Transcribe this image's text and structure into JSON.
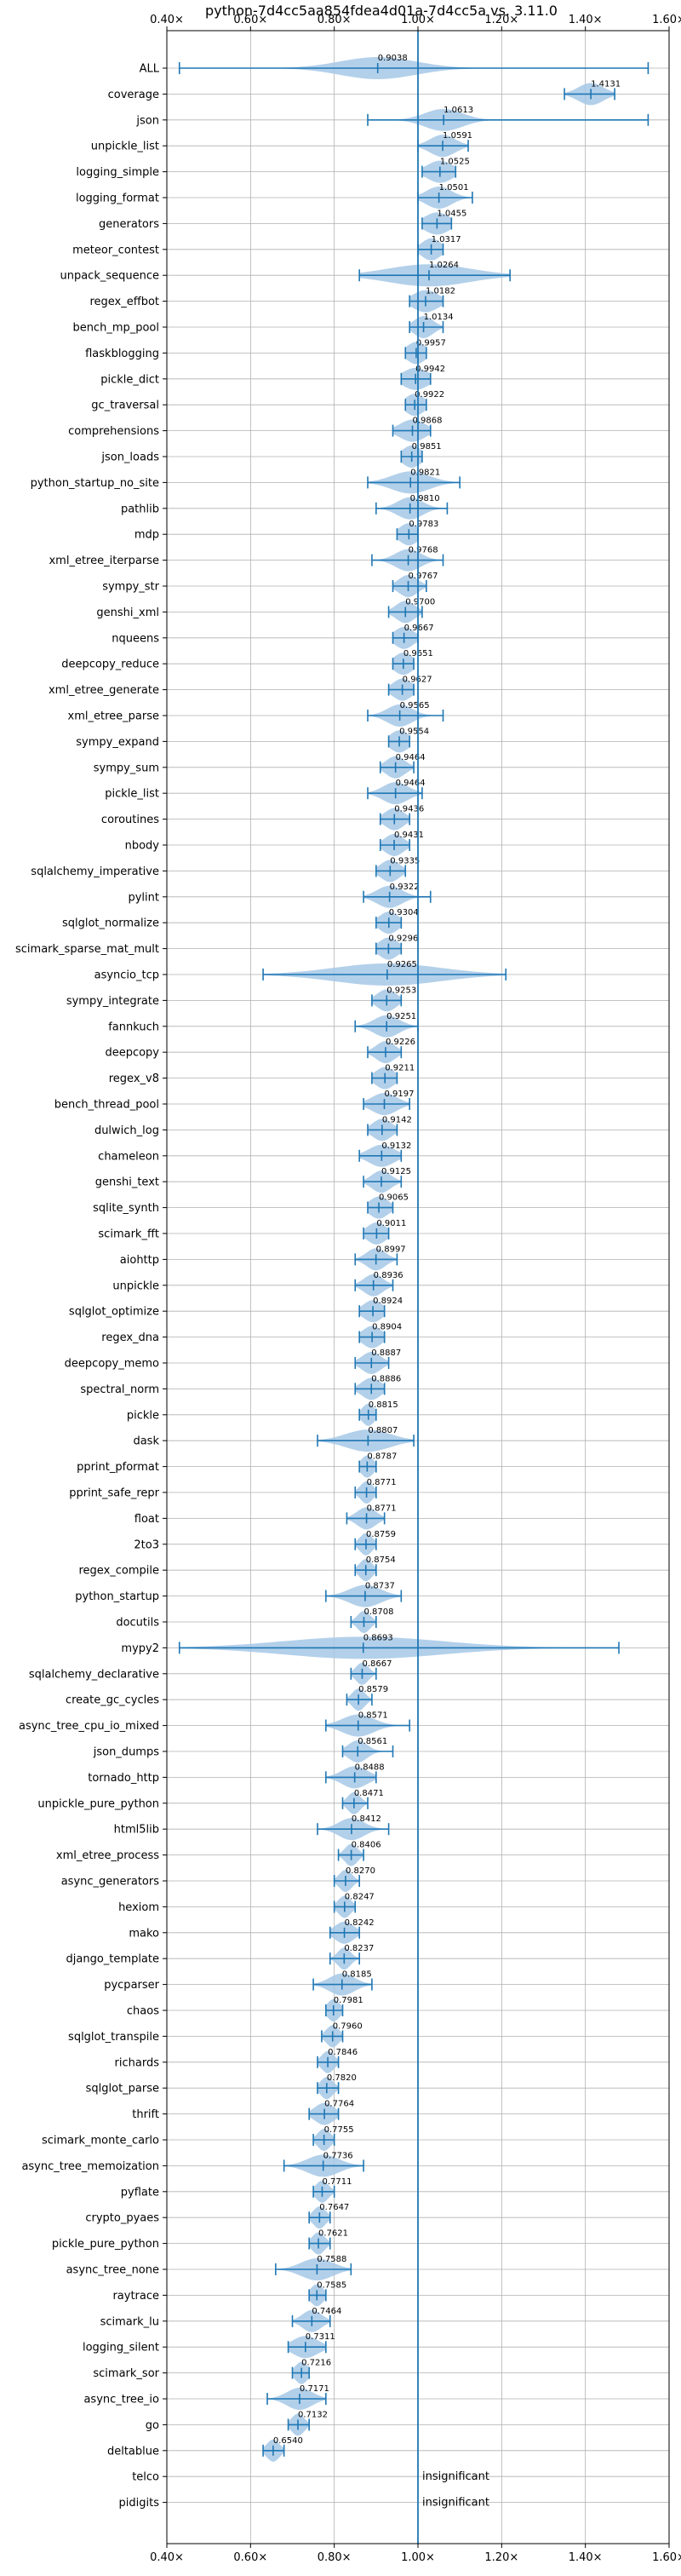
{
  "chart_data": {
    "type": "violin",
    "title": "python-7d4cc5aa854fdea4d01a-7d4cc5a vs. 3.11.0",
    "xlim": [
      0.4,
      1.6
    ],
    "x_ticks": [
      0.4,
      0.6,
      0.8,
      1.0,
      1.2,
      1.4,
      1.6
    ],
    "x_tick_labels": [
      "0.40×",
      "0.60×",
      "0.80×",
      "1.00×",
      "1.20×",
      "1.40×",
      "1.60×"
    ],
    "reference_x": 1.0,
    "grid": true,
    "color": "#1f77b4",
    "fill_color": "#a6c8e6",
    "insignificant_label": "insignificant",
    "categories": [
      {
        "name": "ALL",
        "value": 0.9038,
        "label": "0.9038",
        "min": 0.43,
        "max": 1.55,
        "spread": 0.12
      },
      {
        "name": "coverage",
        "value": 1.4131,
        "label": "1.4131",
        "min": 1.35,
        "max": 1.47,
        "spread": 0.04
      },
      {
        "name": "json",
        "value": 1.0613,
        "label": "1.0613",
        "min": 0.88,
        "max": 1.55,
        "spread": 0.06
      },
      {
        "name": "unpickle_list",
        "value": 1.0591,
        "label": "1.0591",
        "min": 1.0,
        "max": 1.12,
        "spread": 0.04
      },
      {
        "name": "logging_simple",
        "value": 1.0525,
        "label": "1.0525",
        "min": 1.01,
        "max": 1.09,
        "spread": 0.04
      },
      {
        "name": "logging_format",
        "value": 1.0501,
        "label": "1.0501",
        "min": 1.0,
        "max": 1.13,
        "spread": 0.04
      },
      {
        "name": "generators",
        "value": 1.0455,
        "label": "1.0455",
        "min": 1.01,
        "max": 1.08,
        "spread": 0.04
      },
      {
        "name": "meteor_contest",
        "value": 1.0317,
        "label": "1.0317",
        "min": 1.0,
        "max": 1.06,
        "spread": 0.03
      },
      {
        "name": "unpack_sequence",
        "value": 1.0264,
        "label": "1.0264",
        "min": 0.86,
        "max": 1.22,
        "spread": 0.13
      },
      {
        "name": "regex_effbot",
        "value": 1.0182,
        "label": "1.0182",
        "min": 0.98,
        "max": 1.06,
        "spread": 0.04
      },
      {
        "name": "bench_mp_pool",
        "value": 1.0134,
        "label": "1.0134",
        "min": 0.98,
        "max": 1.06,
        "spread": 0.03
      },
      {
        "name": "flaskblogging",
        "value": 0.9957,
        "label": "0.9957",
        "min": 0.97,
        "max": 1.02,
        "spread": 0.03
      },
      {
        "name": "pickle_dict",
        "value": 0.9942,
        "label": "0.9942",
        "min": 0.96,
        "max": 1.03,
        "spread": 0.04
      },
      {
        "name": "gc_traversal",
        "value": 0.9922,
        "label": "0.9922",
        "min": 0.97,
        "max": 1.02,
        "spread": 0.03
      },
      {
        "name": "comprehensions",
        "value": 0.9868,
        "label": "0.9868",
        "min": 0.94,
        "max": 1.03,
        "spread": 0.04
      },
      {
        "name": "json_loads",
        "value": 0.9851,
        "label": "0.9851",
        "min": 0.96,
        "max": 1.01,
        "spread": 0.03
      },
      {
        "name": "python_startup_no_site",
        "value": 0.9821,
        "label": "0.9821",
        "min": 0.88,
        "max": 1.1,
        "spread": 0.06
      },
      {
        "name": "pathlib",
        "value": 0.981,
        "label": "0.9810",
        "min": 0.9,
        "max": 1.07,
        "spread": 0.04
      },
      {
        "name": "mdp",
        "value": 0.9783,
        "label": "0.9783",
        "min": 0.95,
        "max": 1.0,
        "spread": 0.03
      },
      {
        "name": "xml_etree_iterparse",
        "value": 0.9768,
        "label": "0.9768",
        "min": 0.89,
        "max": 1.06,
        "spread": 0.04
      },
      {
        "name": "sympy_str",
        "value": 0.9767,
        "label": "0.9767",
        "min": 0.94,
        "max": 1.02,
        "spread": 0.03
      },
      {
        "name": "genshi_xml",
        "value": 0.97,
        "label": "0.9700",
        "min": 0.93,
        "max": 1.01,
        "spread": 0.03
      },
      {
        "name": "nqueens",
        "value": 0.9667,
        "label": "0.9667",
        "min": 0.94,
        "max": 1.0,
        "spread": 0.03
      },
      {
        "name": "deepcopy_reduce",
        "value": 0.9651,
        "label": "0.9651",
        "min": 0.94,
        "max": 0.99,
        "spread": 0.03
      },
      {
        "name": "xml_etree_generate",
        "value": 0.9627,
        "label": "0.9627",
        "min": 0.93,
        "max": 0.99,
        "spread": 0.03
      },
      {
        "name": "xml_etree_parse",
        "value": 0.9565,
        "label": "0.9565",
        "min": 0.88,
        "max": 1.06,
        "spread": 0.04
      },
      {
        "name": "sympy_expand",
        "value": 0.9554,
        "label": "0.9554",
        "min": 0.93,
        "max": 0.98,
        "spread": 0.03
      },
      {
        "name": "sympy_sum",
        "value": 0.9464,
        "label": "0.9464",
        "min": 0.91,
        "max": 0.99,
        "spread": 0.03
      },
      {
        "name": "pickle_list",
        "value": 0.9464,
        "label": "0.9464",
        "min": 0.88,
        "max": 1.01,
        "spread": 0.04
      },
      {
        "name": "coroutines",
        "value": 0.9436,
        "label": "0.9436",
        "min": 0.91,
        "max": 0.98,
        "spread": 0.03
      },
      {
        "name": "nbody",
        "value": 0.9431,
        "label": "0.9431",
        "min": 0.91,
        "max": 0.98,
        "spread": 0.03
      },
      {
        "name": "sqlalchemy_imperative",
        "value": 0.9335,
        "label": "0.9335",
        "min": 0.9,
        "max": 0.97,
        "spread": 0.03
      },
      {
        "name": "pylint",
        "value": 0.9322,
        "label": "0.9322",
        "min": 0.87,
        "max": 1.03,
        "spread": 0.04
      },
      {
        "name": "sqlglot_normalize",
        "value": 0.9304,
        "label": "0.9304",
        "min": 0.9,
        "max": 0.96,
        "spread": 0.03
      },
      {
        "name": "scimark_sparse_mat_mult",
        "value": 0.9296,
        "label": "0.9296",
        "min": 0.9,
        "max": 0.96,
        "spread": 0.03
      },
      {
        "name": "asyncio_tcp",
        "value": 0.9265,
        "label": "0.9265",
        "min": 0.63,
        "max": 1.21,
        "spread": 0.17
      },
      {
        "name": "sympy_integrate",
        "value": 0.9253,
        "label": "0.9253",
        "min": 0.89,
        "max": 0.96,
        "spread": 0.03
      },
      {
        "name": "fannkuch",
        "value": 0.9251,
        "label": "0.9251",
        "min": 0.85,
        "max": 1.0,
        "spread": 0.04
      },
      {
        "name": "deepcopy",
        "value": 0.9226,
        "label": "0.9226",
        "min": 0.88,
        "max": 0.96,
        "spread": 0.03
      },
      {
        "name": "regex_v8",
        "value": 0.9211,
        "label": "0.9211",
        "min": 0.89,
        "max": 0.95,
        "spread": 0.03
      },
      {
        "name": "bench_thread_pool",
        "value": 0.9197,
        "label": "0.9197",
        "min": 0.87,
        "max": 0.98,
        "spread": 0.04
      },
      {
        "name": "dulwich_log",
        "value": 0.9142,
        "label": "0.9142",
        "min": 0.88,
        "max": 0.95,
        "spread": 0.03
      },
      {
        "name": "chameleon",
        "value": 0.9132,
        "label": "0.9132",
        "min": 0.86,
        "max": 0.96,
        "spread": 0.04
      },
      {
        "name": "genshi_text",
        "value": 0.9125,
        "label": "0.9125",
        "min": 0.87,
        "max": 0.96,
        "spread": 0.03
      },
      {
        "name": "sqlite_synth",
        "value": 0.9065,
        "label": "0.9065",
        "min": 0.88,
        "max": 0.94,
        "spread": 0.03
      },
      {
        "name": "scimark_fft",
        "value": 0.9011,
        "label": "0.9011",
        "min": 0.87,
        "max": 0.93,
        "spread": 0.03
      },
      {
        "name": "aiohttp",
        "value": 0.8997,
        "label": "0.8997",
        "min": 0.85,
        "max": 0.95,
        "spread": 0.03
      },
      {
        "name": "unpickle",
        "value": 0.8936,
        "label": "0.8936",
        "min": 0.85,
        "max": 0.94,
        "spread": 0.03
      },
      {
        "name": "sqlglot_optimize",
        "value": 0.8924,
        "label": "0.8924",
        "min": 0.86,
        "max": 0.92,
        "spread": 0.03
      },
      {
        "name": "regex_dna",
        "value": 0.8904,
        "label": "0.8904",
        "min": 0.86,
        "max": 0.92,
        "spread": 0.03
      },
      {
        "name": "deepcopy_memo",
        "value": 0.8887,
        "label": "0.8887",
        "min": 0.85,
        "max": 0.93,
        "spread": 0.03
      },
      {
        "name": "spectral_norm",
        "value": 0.8886,
        "label": "0.8886",
        "min": 0.85,
        "max": 0.92,
        "spread": 0.03
      },
      {
        "name": "pickle",
        "value": 0.8815,
        "label": "0.8815",
        "min": 0.86,
        "max": 0.9,
        "spread": 0.02
      },
      {
        "name": "dask",
        "value": 0.8807,
        "label": "0.8807",
        "min": 0.76,
        "max": 0.99,
        "spread": 0.07
      },
      {
        "name": "pprint_pformat",
        "value": 0.8787,
        "label": "0.8787",
        "min": 0.86,
        "max": 0.9,
        "spread": 0.02
      },
      {
        "name": "pprint_safe_repr",
        "value": 0.8771,
        "label": "0.8771",
        "min": 0.85,
        "max": 0.9,
        "spread": 0.02
      },
      {
        "name": "float",
        "value": 0.8771,
        "label": "0.8771",
        "min": 0.83,
        "max": 0.92,
        "spread": 0.03
      },
      {
        "name": "2to3",
        "value": 0.8759,
        "label": "0.8759",
        "min": 0.85,
        "max": 0.9,
        "spread": 0.02
      },
      {
        "name": "regex_compile",
        "value": 0.8754,
        "label": "0.8754",
        "min": 0.85,
        "max": 0.9,
        "spread": 0.02
      },
      {
        "name": "python_startup",
        "value": 0.8737,
        "label": "0.8737",
        "min": 0.78,
        "max": 0.96,
        "spread": 0.05
      },
      {
        "name": "docutils",
        "value": 0.8708,
        "label": "0.8708",
        "min": 0.84,
        "max": 0.9,
        "spread": 0.02
      },
      {
        "name": "mypy2",
        "value": 0.8693,
        "label": "0.8693",
        "min": 0.43,
        "max": 1.48,
        "spread": 0.25
      },
      {
        "name": "sqlalchemy_declarative",
        "value": 0.8667,
        "label": "0.8667",
        "min": 0.84,
        "max": 0.9,
        "spread": 0.02
      },
      {
        "name": "create_gc_cycles",
        "value": 0.8579,
        "label": "0.8579",
        "min": 0.83,
        "max": 0.89,
        "spread": 0.02
      },
      {
        "name": "async_tree_cpu_io_mixed",
        "value": 0.8571,
        "label": "0.8571",
        "min": 0.78,
        "max": 0.98,
        "spread": 0.05
      },
      {
        "name": "json_dumps",
        "value": 0.8561,
        "label": "0.8561",
        "min": 0.82,
        "max": 0.94,
        "spread": 0.03
      },
      {
        "name": "tornado_http",
        "value": 0.8488,
        "label": "0.8488",
        "min": 0.78,
        "max": 0.9,
        "spread": 0.04
      },
      {
        "name": "unpickle_pure_python",
        "value": 0.8471,
        "label": "0.8471",
        "min": 0.82,
        "max": 0.88,
        "spread": 0.02
      },
      {
        "name": "html5lib",
        "value": 0.8412,
        "label": "0.8412",
        "min": 0.76,
        "max": 0.93,
        "spread": 0.04
      },
      {
        "name": "xml_etree_process",
        "value": 0.8406,
        "label": "0.8406",
        "min": 0.81,
        "max": 0.87,
        "spread": 0.02
      },
      {
        "name": "async_generators",
        "value": 0.827,
        "label": "0.8270",
        "min": 0.8,
        "max": 0.86,
        "spread": 0.02
      },
      {
        "name": "hexiom",
        "value": 0.8247,
        "label": "0.8247",
        "min": 0.8,
        "max": 0.85,
        "spread": 0.02
      },
      {
        "name": "mako",
        "value": 0.8242,
        "label": "0.8242",
        "min": 0.79,
        "max": 0.86,
        "spread": 0.03
      },
      {
        "name": "django_template",
        "value": 0.8237,
        "label": "0.8237",
        "min": 0.79,
        "max": 0.86,
        "spread": 0.02
      },
      {
        "name": "pycparser",
        "value": 0.8185,
        "label": "0.8185",
        "min": 0.75,
        "max": 0.89,
        "spread": 0.04
      },
      {
        "name": "chaos",
        "value": 0.7981,
        "label": "0.7981",
        "min": 0.78,
        "max": 0.82,
        "spread": 0.02
      },
      {
        "name": "sqlglot_transpile",
        "value": 0.796,
        "label": "0.7960",
        "min": 0.77,
        "max": 0.82,
        "spread": 0.02
      },
      {
        "name": "richards",
        "value": 0.7846,
        "label": "0.7846",
        "min": 0.76,
        "max": 0.81,
        "spread": 0.02
      },
      {
        "name": "sqlglot_parse",
        "value": 0.782,
        "label": "0.7820",
        "min": 0.76,
        "max": 0.81,
        "spread": 0.02
      },
      {
        "name": "thrift",
        "value": 0.7764,
        "label": "0.7764",
        "min": 0.74,
        "max": 0.81,
        "spread": 0.03
      },
      {
        "name": "scimark_monte_carlo",
        "value": 0.7755,
        "label": "0.7755",
        "min": 0.75,
        "max": 0.8,
        "spread": 0.02
      },
      {
        "name": "async_tree_memoization",
        "value": 0.7736,
        "label": "0.7736",
        "min": 0.68,
        "max": 0.87,
        "spread": 0.05
      },
      {
        "name": "pyflate",
        "value": 0.7711,
        "label": "0.7711",
        "min": 0.75,
        "max": 0.8,
        "spread": 0.02
      },
      {
        "name": "crypto_pyaes",
        "value": 0.7647,
        "label": "0.7647",
        "min": 0.74,
        "max": 0.79,
        "spread": 0.02
      },
      {
        "name": "pickle_pure_python",
        "value": 0.7621,
        "label": "0.7621",
        "min": 0.74,
        "max": 0.79,
        "spread": 0.02
      },
      {
        "name": "async_tree_none",
        "value": 0.7588,
        "label": "0.7588",
        "min": 0.66,
        "max": 0.84,
        "spread": 0.05
      },
      {
        "name": "raytrace",
        "value": 0.7585,
        "label": "0.7585",
        "min": 0.74,
        "max": 0.78,
        "spread": 0.02
      },
      {
        "name": "scimark_lu",
        "value": 0.7464,
        "label": "0.7464",
        "min": 0.7,
        "max": 0.79,
        "spread": 0.03
      },
      {
        "name": "logging_silent",
        "value": 0.7311,
        "label": "0.7311",
        "min": 0.69,
        "max": 0.78,
        "spread": 0.04
      },
      {
        "name": "scimark_sor",
        "value": 0.7216,
        "label": "0.7216",
        "min": 0.7,
        "max": 0.74,
        "spread": 0.02
      },
      {
        "name": "async_tree_io",
        "value": 0.7171,
        "label": "0.7171",
        "min": 0.64,
        "max": 0.78,
        "spread": 0.04
      },
      {
        "name": "go",
        "value": 0.7132,
        "label": "0.7132",
        "min": 0.69,
        "max": 0.74,
        "spread": 0.02
      },
      {
        "name": "deltablue",
        "value": 0.654,
        "label": "0.6540",
        "min": 0.63,
        "max": 0.68,
        "spread": 0.02
      },
      {
        "name": "telco",
        "value": null,
        "label": "insignificant"
      },
      {
        "name": "pidigits",
        "value": null,
        "label": "insignificant"
      }
    ]
  }
}
